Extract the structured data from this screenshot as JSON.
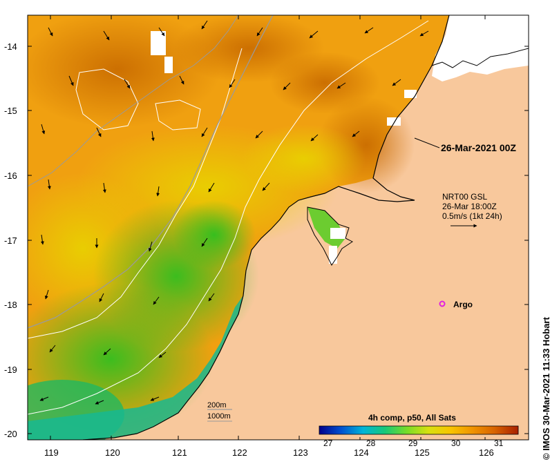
{
  "map": {
    "lat_ticks": [
      "-14",
      "-15",
      "-16",
      "-17",
      "-18",
      "-19",
      "-20"
    ],
    "lon_ticks": [
      "119",
      "120",
      "121",
      "122",
      "123",
      "124",
      "125",
      "126"
    ],
    "colors": {
      "land": "#f8c89c",
      "cloud": "#ffffff",
      "coast": "#000000",
      "contour": "#ffffff",
      "bathymetry": "#9a9a9a"
    }
  },
  "annotations": {
    "composite_time": "26-Mar-2021 00Z",
    "current_source": "NRT00 GSL",
    "current_time": "26-Mar 18:00Z",
    "current_scale": "0.5m/s (1kt 24h)",
    "argo_label": "Argo",
    "argo_color": "#e020e0",
    "contour_200": "200m",
    "contour_1000": "1000m"
  },
  "colorbar": {
    "title": "4h comp, p50, All Sats",
    "ticks": [
      "27",
      "28",
      "29",
      "30",
      "31"
    ],
    "colors": [
      "#00008c",
      "#0050d0",
      "#00b4d8",
      "#18c878",
      "#78dc28",
      "#d8e010",
      "#f8c400",
      "#f09400",
      "#d86400",
      "#a82000"
    ]
  },
  "credit": "© IMOS 30-Mar-2021 11:33 Hobart"
}
